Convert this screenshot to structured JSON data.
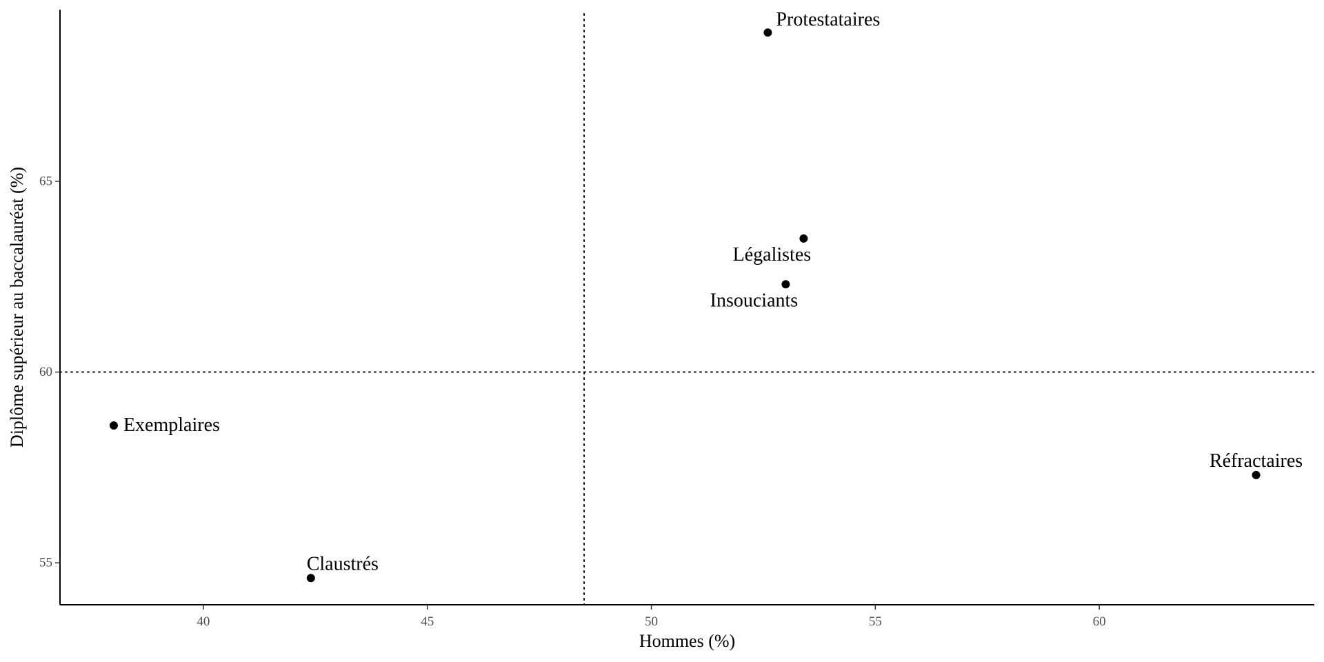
{
  "chart_data": {
    "type": "scatter",
    "xlabel": "Hommes (%)",
    "ylabel": "Diplôme supérieur au baccalauréat (%)",
    "xlim": [
      36.8,
      64.8
    ],
    "ylim": [
      53.9,
      69.5
    ],
    "xticks": [
      40,
      45,
      50,
      55,
      60
    ],
    "yticks": [
      55,
      60,
      65
    ],
    "grid": false,
    "reference_lines": {
      "x": 48.5,
      "y": 60,
      "style": "dotted"
    },
    "points": [
      {
        "label": "Protestataires",
        "x": 52.6,
        "y": 68.9
      },
      {
        "label": "Légalistes",
        "x": 53.4,
        "y": 63.5
      },
      {
        "label": "Insouciants",
        "x": 53.0,
        "y": 62.3
      },
      {
        "label": "Exemplaires",
        "x": 38.0,
        "y": 58.6
      },
      {
        "label": "Réfractaires",
        "x": 63.5,
        "y": 57.3
      },
      {
        "label": "Claustrés",
        "x": 42.4,
        "y": 54.6
      }
    ]
  }
}
